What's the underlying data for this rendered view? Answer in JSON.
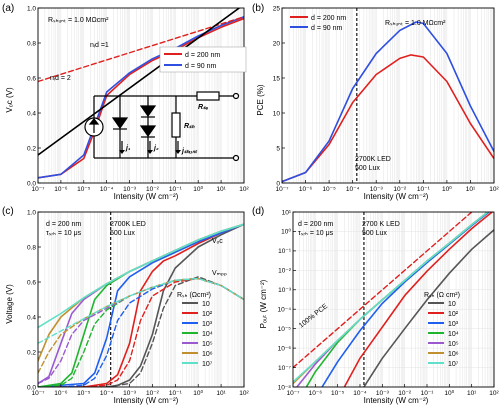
{
  "chart_data": [
    {
      "id": "a",
      "type": "line",
      "panel_label": "(a)",
      "xlabel": "Intensity (W cm⁻²)",
      "ylabel": "Vₒᴄ (V)",
      "xscale": "log",
      "xlim": [
        1e-07,
        100
      ],
      "ylim": [
        0,
        1.0
      ],
      "yticks": [
        "0.0",
        "0.2",
        "0.4",
        "0.6",
        "0.8",
        "1.0"
      ],
      "xticks": [
        "10⁻⁷",
        "10⁻⁶",
        "10⁻⁵",
        "10⁻⁴",
        "10⁻³",
        "10⁻²",
        "10⁻¹",
        "10⁰",
        "10¹",
        "10²"
      ],
      "annotations": [
        "Rₛₕᵤₙₜ = 1.0 MΩcm²",
        "nᵢd =1",
        "nᵢd = 2",
        "Rₛₑ",
        "Rₛₕ",
        "j₁",
        "j₂",
        "jₛₕᵤₙₜ"
      ],
      "legend_position": "right",
      "series": [
        {
          "name": "d = 200 nm",
          "color": "#e0201e",
          "x": [
            1e-07,
            1e-06,
            1e-05,
            3e-05,
            0.0001,
            0.001,
            0.01,
            0.1,
            1,
            10,
            100
          ],
          "y": [
            0.03,
            0.05,
            0.14,
            0.3,
            0.5,
            0.62,
            0.7,
            0.76,
            0.83,
            0.89,
            0.94
          ]
        },
        {
          "name": "d = 90 nm",
          "color": "#2f4fe0",
          "x": [
            1e-07,
            1e-06,
            1e-05,
            3e-05,
            0.0001,
            0.001,
            0.01,
            0.1,
            1,
            10,
            100
          ],
          "y": [
            0.03,
            0.05,
            0.16,
            0.33,
            0.52,
            0.63,
            0.71,
            0.77,
            0.84,
            0.9,
            0.95
          ]
        },
        {
          "name": "n_id = 1",
          "color": "#e0201e",
          "style": "dashed",
          "x": [
            1e-07,
            100
          ],
          "y": [
            0.58,
            0.95
          ]
        },
        {
          "name": "n_id = 2",
          "color": "#000000",
          "style": "solid",
          "x": [
            1e-07,
            100
          ],
          "y": [
            0.16,
            1.02
          ]
        }
      ]
    },
    {
      "id": "b",
      "type": "line",
      "panel_label": "(b)",
      "xlabel": "Intensity (W cm⁻²)",
      "ylabel": "PCE (%)",
      "xscale": "log",
      "xlim": [
        1e-07,
        100
      ],
      "ylim": [
        0,
        25
      ],
      "yticks": [
        "0",
        "5",
        "10",
        "15",
        "20",
        "25"
      ],
      "xticks": [
        "10⁻⁷",
        "10⁻⁶",
        "10⁻⁵",
        "10⁻⁴",
        "10⁻³",
        "10⁻²",
        "10⁻¹",
        "10⁰",
        "10¹",
        "10²"
      ],
      "annotations": [
        "Rₛₕᵤₙₜ = 1.0 MΩcm²",
        "2700K LED",
        "500 Lux"
      ],
      "vline_x": 0.00015,
      "legend_position": "top-left",
      "series": [
        {
          "name": "d = 200 nm",
          "color": "#e0201e",
          "x": [
            1e-07,
            1e-06,
            1e-05,
            0.0001,
            0.001,
            0.01,
            0.03,
            0.1,
            1,
            10,
            100
          ],
          "y": [
            0.2,
            1.5,
            5.5,
            11.5,
            15.5,
            17.8,
            18.3,
            18.0,
            14.5,
            8.5,
            3.5
          ]
        },
        {
          "name": "d = 90 nm",
          "color": "#2f4fe0",
          "x": [
            1e-07,
            1e-06,
            1e-05,
            0.0001,
            0.001,
            0.01,
            0.05,
            0.1,
            1,
            10,
            100
          ],
          "y": [
            0.2,
            1.5,
            6.0,
            13.5,
            18.5,
            21.8,
            23.0,
            22.8,
            18.5,
            11.0,
            4.5
          ]
        }
      ]
    },
    {
      "id": "c",
      "type": "line",
      "panel_label": "(c)",
      "xlabel": "Intensity (W cm⁻²)",
      "ylabel": "Voltage (V)",
      "xscale": "log",
      "xlim": [
        1e-07,
        100
      ],
      "ylim": [
        0,
        1.0
      ],
      "yticks": [
        "0.0",
        "0.2",
        "0.4",
        "0.6",
        "0.8",
        "1.0"
      ],
      "xticks": [
        "10⁻⁷",
        "10⁻⁶",
        "10⁻⁵",
        "10⁻⁴",
        "10⁻³",
        "10⁻²",
        "10⁻¹",
        "10⁰",
        "10¹",
        "10²"
      ],
      "annotations": [
        "d = 200 nm",
        "τₛᵣₕ = 10 μs",
        "2700K LED",
        "500 Lux",
        "Vₒᴄ",
        "Vₘₚₚ"
      ],
      "vline_x": 0.00015,
      "legend_title": "Rₛₕ (Ωcm²)",
      "legend_position": "bottom-right",
      "series": [
        {
          "name": "10",
          "color": "#555555",
          "x": [
            1e-07,
            1e-05,
            0.0001,
            0.0003,
            0.001,
            0.003,
            0.01,
            0.03,
            0.1,
            1,
            10,
            100
          ],
          "y": [
            0.0,
            0.0,
            0.0,
            0.01,
            0.04,
            0.12,
            0.3,
            0.55,
            0.68,
            0.8,
            0.87,
            0.93
          ]
        },
        {
          "name": "10²",
          "color": "#e0201e",
          "x": [
            1e-07,
            1e-05,
            0.0001,
            0.0003,
            0.001,
            0.003,
            0.01,
            0.03,
            0.1,
            1,
            10,
            100
          ],
          "y": [
            0.0,
            0.0,
            0.02,
            0.07,
            0.25,
            0.55,
            0.66,
            0.72,
            0.75,
            0.82,
            0.88,
            0.93
          ]
        },
        {
          "name": "10³",
          "color": "#1f5ff0",
          "x": [
            1e-07,
            1e-05,
            3e-05,
            0.0001,
            0.0003,
            0.001,
            0.01,
            0.1,
            1,
            10,
            100
          ],
          "y": [
            0.0,
            0.02,
            0.08,
            0.28,
            0.55,
            0.63,
            0.71,
            0.77,
            0.83,
            0.88,
            0.93
          ]
        },
        {
          "name": "10⁴",
          "color": "#1fb52e",
          "x": [
            1e-07,
            1e-06,
            3e-06,
            1e-05,
            3e-05,
            0.0001,
            0.001,
            0.01,
            0.1,
            1,
            10,
            100
          ],
          "y": [
            0.0,
            0.02,
            0.08,
            0.3,
            0.5,
            0.58,
            0.66,
            0.72,
            0.78,
            0.84,
            0.89,
            0.93
          ]
        },
        {
          "name": "10⁵",
          "color": "#9b59d0",
          "x": [
            1e-07,
            3e-07,
            1e-06,
            3e-06,
            1e-05,
            0.0001,
            0.001,
            0.01,
            0.1,
            1,
            10,
            100
          ],
          "y": [
            0.02,
            0.06,
            0.25,
            0.42,
            0.5,
            0.59,
            0.66,
            0.72,
            0.78,
            0.84,
            0.89,
            0.93
          ]
        },
        {
          "name": "10⁶",
          "color": "#c09030",
          "x": [
            1e-07,
            3e-07,
            1e-06,
            1e-05,
            0.0001,
            0.001,
            0.01,
            0.1,
            1,
            10,
            100
          ],
          "y": [
            0.15,
            0.3,
            0.4,
            0.51,
            0.59,
            0.66,
            0.72,
            0.78,
            0.84,
            0.89,
            0.93
          ]
        },
        {
          "name": "10⁷",
          "color": "#5fe0c8",
          "x": [
            1e-07,
            1e-06,
            1e-05,
            0.0001,
            0.001,
            0.01,
            0.1,
            1,
            10,
            100
          ],
          "y": [
            0.34,
            0.42,
            0.51,
            0.59,
            0.66,
            0.72,
            0.78,
            0.84,
            0.89,
            0.93
          ]
        }
      ],
      "vmpp_series": [
        {
          "name": "10",
          "color": "#555555",
          "x": [
            0.0001,
            0.001,
            0.003,
            0.01,
            0.03,
            0.1,
            1,
            10,
            100
          ],
          "y": [
            0.0,
            0.02,
            0.08,
            0.25,
            0.45,
            0.58,
            0.63,
            0.58,
            0.5
          ]
        },
        {
          "name": "10²",
          "color": "#e0201e",
          "x": [
            1e-05,
            0.0001,
            0.0003,
            0.001,
            0.003,
            0.01,
            0.1,
            1,
            10,
            100
          ],
          "y": [
            0.0,
            0.01,
            0.04,
            0.15,
            0.38,
            0.52,
            0.6,
            0.62,
            0.58,
            0.5
          ]
        },
        {
          "name": "10³",
          "color": "#1f5ff0",
          "x": [
            1e-06,
            1e-05,
            3e-05,
            0.0001,
            0.0003,
            0.001,
            0.01,
            0.1,
            1,
            10,
            100
          ],
          "y": [
            0.0,
            0.01,
            0.05,
            0.18,
            0.38,
            0.48,
            0.56,
            0.61,
            0.62,
            0.58,
            0.5
          ]
        },
        {
          "name": "10⁴",
          "color": "#1fb52e",
          "x": [
            1e-07,
            1e-06,
            3e-06,
            1e-05,
            3e-05,
            0.0001,
            0.001,
            0.01,
            0.1,
            1,
            10,
            100
          ],
          "y": [
            0.0,
            0.01,
            0.05,
            0.2,
            0.36,
            0.44,
            0.52,
            0.57,
            0.61,
            0.62,
            0.58,
            0.5
          ]
        },
        {
          "name": "10⁵",
          "color": "#9b59d0",
          "x": [
            1e-07,
            3e-07,
            1e-06,
            3e-06,
            1e-05,
            0.0001,
            0.001,
            0.01,
            0.1,
            1,
            10,
            100
          ],
          "y": [
            0.02,
            0.05,
            0.15,
            0.3,
            0.38,
            0.45,
            0.52,
            0.57,
            0.61,
            0.62,
            0.58,
            0.5
          ]
        },
        {
          "name": "10⁶",
          "color": "#c09030",
          "x": [
            1e-07,
            3e-07,
            1e-06,
            1e-05,
            0.0001,
            0.001,
            0.01,
            0.1,
            1,
            10,
            100
          ],
          "y": [
            0.08,
            0.2,
            0.3,
            0.39,
            0.46,
            0.52,
            0.57,
            0.61,
            0.62,
            0.58,
            0.5
          ]
        },
        {
          "name": "10⁷",
          "color": "#5fe0c8",
          "x": [
            1e-07,
            1e-06,
            1e-05,
            0.0001,
            0.001,
            0.01,
            0.1,
            1,
            10,
            100
          ],
          "y": [
            0.25,
            0.32,
            0.39,
            0.46,
            0.52,
            0.57,
            0.61,
            0.62,
            0.58,
            0.5
          ]
        }
      ]
    },
    {
      "id": "d",
      "type": "line",
      "panel_label": "(d)",
      "xlabel": "Intensity (W cm⁻²)",
      "ylabel": "Pₒᵤₜ (W cm⁻²)",
      "xscale": "log",
      "yscale": "log",
      "xlim": [
        1e-07,
        100
      ],
      "ylim": [
        1e-08,
        10
      ],
      "yticks": [
        "10⁻⁸",
        "10⁻⁷",
        "10⁻⁶",
        "10⁻⁵",
        "10⁻⁴",
        "10⁻³",
        "10⁻²",
        "10⁻¹",
        "10⁰",
        "10¹"
      ],
      "xticks": [
        "10⁻⁷",
        "10⁻⁶",
        "10⁻⁵",
        "10⁻⁴",
        "10⁻³",
        "10⁻²",
        "10⁻¹",
        "10⁰",
        "10¹",
        "10²"
      ],
      "annotations": [
        "d = 200 nm",
        "τₛᵣₕ = 10 μs",
        "2700 K LED",
        "500 Lux",
        "100% PCE"
      ],
      "vline_x": 0.00015,
      "legend_title": "Rₛₕ (Ω cm²)",
      "legend_position": "bottom-right",
      "series": [
        {
          "name": "100% PCE",
          "color": "#e0201e",
          "style": "dashed",
          "x": [
            1e-07,
            100
          ],
          "y": [
            1e-07,
            100
          ]
        },
        {
          "name": "10",
          "color": "#555555",
          "x": [
            0.00015,
            0.001,
            0.01,
            0.1,
            1,
            10,
            100
          ],
          "y": [
            1e-08,
            3e-07,
            1e-05,
            0.0003,
            0.007,
            0.12,
            1.2
          ]
        },
        {
          "name": "10²",
          "color": "#e0201e",
          "x": [
            2e-05,
            0.0001,
            0.001,
            0.01,
            0.1,
            1,
            10,
            100
          ],
          "y": [
            1e-08,
            3e-07,
            1.2e-05,
            0.0005,
            0.009,
            0.12,
            1.4,
            12
          ]
        },
        {
          "name": "10³",
          "color": "#1f5ff0",
          "x": [
            2e-06,
            1e-05,
            0.0001,
            0.001,
            0.01,
            0.1,
            1,
            10,
            100
          ],
          "y": [
            1e-08,
            2e-07,
            8e-06,
            0.0002,
            0.0025,
            0.025,
            0.22,
            2,
            16
          ]
        },
        {
          "name": "10⁴",
          "color": "#1fb52e",
          "x": [
            4e-07,
            1e-06,
            1e-05,
            0.0001,
            0.001,
            0.01,
            0.1,
            1,
            10,
            100
          ],
          "y": [
            1e-08,
            6e-08,
            2e-06,
            3e-05,
            0.0003,
            0.003,
            0.03,
            0.25,
            2.2,
            18
          ]
        },
        {
          "name": "10⁵",
          "color": "#9b59d0",
          "x": [
            1.5e-07,
            1e-06,
            1e-05,
            0.0001,
            0.001,
            0.01,
            0.1,
            1,
            10,
            100
          ],
          "y": [
            1e-08,
            1.5e-07,
            2.5e-06,
            3e-05,
            0.0003,
            0.003,
            0.03,
            0.25,
            2.2,
            18
          ]
        },
        {
          "name": "10⁶",
          "color": "#c09030",
          "x": [
            1e-07,
            1e-06,
            1e-05,
            0.0001,
            0.001,
            0.01,
            0.1,
            1,
            10,
            100
          ],
          "y": [
            1.5e-08,
            2e-07,
            2.5e-06,
            3e-05,
            0.0003,
            0.003,
            0.03,
            0.25,
            2.2,
            18
          ]
        },
        {
          "name": "10⁷",
          "color": "#5fe0c8",
          "x": [
            1e-07,
            1e-06,
            1e-05,
            0.0001,
            0.001,
            0.01,
            0.1,
            1,
            10,
            100
          ],
          "y": [
            1.8e-08,
            2e-07,
            2.5e-06,
            3e-05,
            0.0003,
            0.003,
            0.03,
            0.25,
            2.2,
            18
          ]
        }
      ]
    }
  ]
}
